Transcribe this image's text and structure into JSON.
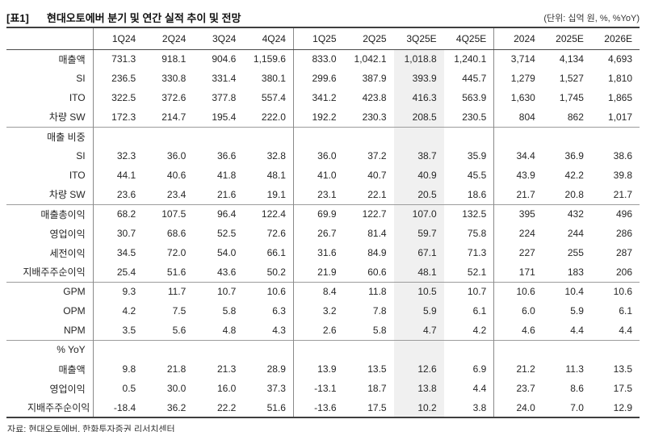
{
  "meta": {
    "table_tag": "[표1]",
    "title": "현대오토에버 분기 및 연간 실적 추이 및 전망",
    "unit_note": "(단위: 십억 원, %, %YoY)",
    "source": "자료: 현대오토에버, 한화투자증권 리서치센터"
  },
  "colors": {
    "highlight_column_bg": "#f0f0f0",
    "heavy_rule": "#3f3f3f",
    "section_rule": "#9c9c9c",
    "vertical_rule": "#8a8a8a"
  },
  "table": {
    "columns": [
      "1Q24",
      "2Q24",
      "3Q24",
      "4Q24",
      "1Q25",
      "2Q25",
      "3Q25E",
      "4Q25E",
      "2024",
      "2025E",
      "2026E"
    ],
    "highlight_column": "3Q25E",
    "highlight_index": 6,
    "rows": [
      {
        "label": "매출액",
        "indent": false,
        "rule_above": false,
        "values": [
          "731.3",
          "918.1",
          "904.6",
          "1,159.6",
          "833.0",
          "1,042.1",
          "1,018.8",
          "1,240.1",
          "3,714",
          "4,134",
          "4,693"
        ]
      },
      {
        "label": "SI",
        "indent": true,
        "rule_above": false,
        "values": [
          "236.5",
          "330.8",
          "331.4",
          "380.1",
          "299.6",
          "387.9",
          "393.9",
          "445.7",
          "1,279",
          "1,527",
          "1,810"
        ]
      },
      {
        "label": "ITO",
        "indent": true,
        "rule_above": false,
        "values": [
          "322.5",
          "372.6",
          "377.8",
          "557.4",
          "341.2",
          "423.8",
          "416.3",
          "563.9",
          "1,630",
          "1,745",
          "1,865"
        ]
      },
      {
        "label": "차량 SW",
        "indent": true,
        "rule_above": false,
        "values": [
          "172.3",
          "214.7",
          "195.4",
          "222.0",
          "192.2",
          "230.3",
          "208.5",
          "230.5",
          "804",
          "862",
          "1,017"
        ]
      },
      {
        "label": "매출 비중",
        "indent": false,
        "rule_above": true,
        "values": []
      },
      {
        "label": "SI",
        "indent": true,
        "rule_above": false,
        "values": [
          "32.3",
          "36.0",
          "36.6",
          "32.8",
          "36.0",
          "37.2",
          "38.7",
          "35.9",
          "34.4",
          "36.9",
          "38.6"
        ]
      },
      {
        "label": "ITO",
        "indent": true,
        "rule_above": false,
        "values": [
          "44.1",
          "40.6",
          "41.8",
          "48.1",
          "41.0",
          "40.7",
          "40.9",
          "45.5",
          "43.9",
          "42.2",
          "39.8"
        ]
      },
      {
        "label": "차량 SW",
        "indent": true,
        "rule_above": false,
        "values": [
          "23.6",
          "23.4",
          "21.6",
          "19.1",
          "23.1",
          "22.1",
          "20.5",
          "18.6",
          "21.7",
          "20.8",
          "21.7"
        ]
      },
      {
        "label": "매출총이익",
        "indent": false,
        "rule_above": true,
        "values": [
          "68.2",
          "107.5",
          "96.4",
          "122.4",
          "69.9",
          "122.7",
          "107.0",
          "132.5",
          "395",
          "432",
          "496"
        ]
      },
      {
        "label": "영업이익",
        "indent": false,
        "rule_above": false,
        "values": [
          "30.7",
          "68.6",
          "52.5",
          "72.6",
          "26.7",
          "81.4",
          "59.7",
          "75.8",
          "224",
          "244",
          "286"
        ]
      },
      {
        "label": "세전이익",
        "indent": false,
        "rule_above": false,
        "values": [
          "34.5",
          "72.0",
          "54.0",
          "66.1",
          "31.6",
          "84.9",
          "67.1",
          "71.3",
          "227",
          "255",
          "287"
        ]
      },
      {
        "label": "지배주주순이익",
        "indent": false,
        "rule_above": false,
        "values": [
          "25.4",
          "51.6",
          "43.6",
          "50.2",
          "21.9",
          "60.6",
          "48.1",
          "52.1",
          "171",
          "183",
          "206"
        ]
      },
      {
        "label": "GPM",
        "indent": false,
        "rule_above": true,
        "values": [
          "9.3",
          "11.7",
          "10.7",
          "10.6",
          "8.4",
          "11.8",
          "10.5",
          "10.7",
          "10.6",
          "10.4",
          "10.6"
        ]
      },
      {
        "label": "OPM",
        "indent": false,
        "rule_above": false,
        "values": [
          "4.2",
          "7.5",
          "5.8",
          "6.3",
          "3.2",
          "7.8",
          "5.9",
          "6.1",
          "6.0",
          "5.9",
          "6.1"
        ]
      },
      {
        "label": "NPM",
        "indent": false,
        "rule_above": false,
        "values": [
          "3.5",
          "5.6",
          "4.8",
          "4.3",
          "2.6",
          "5.8",
          "4.7",
          "4.2",
          "4.6",
          "4.4",
          "4.4"
        ]
      },
      {
        "label": "% YoY",
        "indent": false,
        "rule_above": true,
        "values": []
      },
      {
        "label": "매출액",
        "indent": true,
        "rule_above": false,
        "values": [
          "9.8",
          "21.8",
          "21.3",
          "28.9",
          "13.9",
          "13.5",
          "12.6",
          "6.9",
          "21.2",
          "11.3",
          "13.5"
        ]
      },
      {
        "label": "영업이익",
        "indent": true,
        "rule_above": false,
        "values": [
          "0.5",
          "30.0",
          "16.0",
          "37.3",
          "-13.1",
          "18.7",
          "13.8",
          "4.4",
          "23.7",
          "8.6",
          "17.5"
        ]
      },
      {
        "label": "지배주주순이익",
        "indent": true,
        "rule_above": false,
        "values": [
          "-18.4",
          "36.2",
          "22.2",
          "51.6",
          "-13.6",
          "17.5",
          "10.2",
          "3.8",
          "24.0",
          "7.0",
          "12.9"
        ]
      }
    ]
  }
}
